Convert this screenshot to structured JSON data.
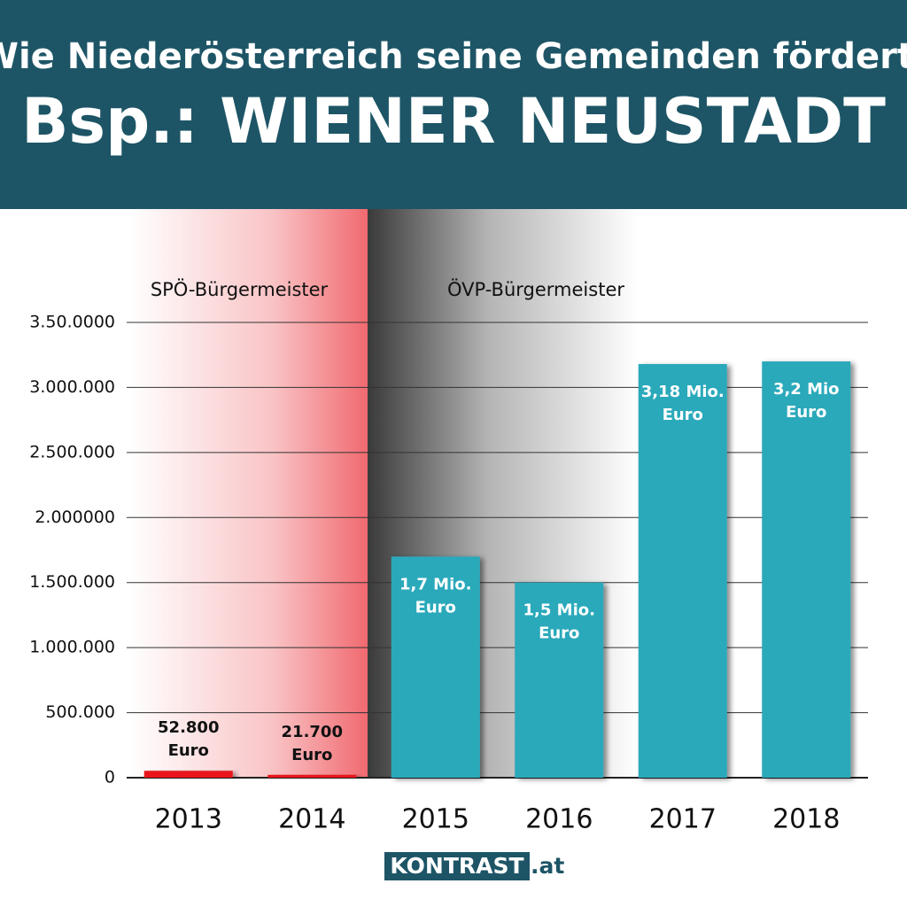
{
  "chart_data": {
    "type": "bar",
    "title": "Wie Niederösterreich seine Gemeinden fördert.",
    "subtitle": "Bsp.: WIENER NEUSTADT",
    "annotations": [
      "SPÖ-Bürgermeister",
      "ÖVP-Bürgermeister"
    ],
    "categories": [
      "2013",
      "2014",
      "2015",
      "2016",
      "2017",
      "2018"
    ],
    "values": [
      52800,
      21700,
      1700000,
      1500000,
      3180000,
      3200000
    ],
    "value_labels": [
      "52.800 Euro",
      "21.700 Euro",
      "1,7 Mio. Euro",
      "1,5 Mio. Euro",
      "3,18 Mio. Euro",
      "3,2 Mio Euro"
    ],
    "colors": [
      "#e8141c",
      "#e8141c",
      "#2aa9bb",
      "#2aa9bb",
      "#2aa9bb",
      "#2aa9bb"
    ],
    "ylim": [
      0,
      3500000
    ],
    "yticks": [
      0,
      {
        "value": 500000,
        "label": "500.000"
      },
      {
        "value": 1000000,
        "label": "1.000.000"
      },
      {
        "value": 1500000,
        "label": "1.500.000"
      },
      {
        "value": 2000000,
        "label": "2.000000"
      },
      {
        "value": 2500000,
        "label": "2.500.000"
      },
      {
        "value": 3000000,
        "label": "3.000.000"
      },
      {
        "value": 3500000,
        "label": "3.50.0000"
      }
    ],
    "grid": true
  },
  "footer": {
    "logo": "KONTRAST",
    "domain": ".at"
  }
}
